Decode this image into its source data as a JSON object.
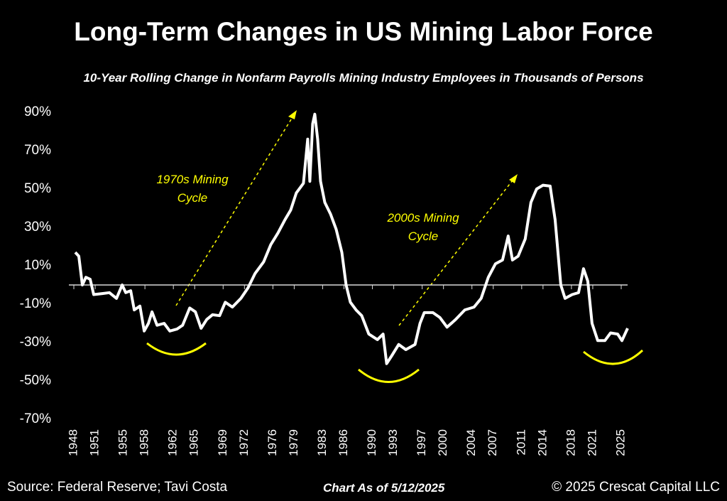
{
  "chart_data": {
    "type": "line",
    "title": "Long-Term Changes in US Mining Labor Force",
    "subtitle": "10-Year Rolling Change in Nonfarm Payrolls Mining Industry Employees in Thousands of Persons",
    "annotations": [
      "1970s Mining Cycle",
      "2000s Mining Cycle"
    ],
    "source": "Source: Federal Reserve; Tavi Costa",
    "date_note": "Chart As of 5/12/2025",
    "copyright": "© 2025 Crescat Capital LLC",
    "xlim": [
      1947.3,
      2025.9
    ],
    "xticks": [
      1948,
      1951,
      1955,
      1958,
      1962,
      1965,
      1969,
      1972,
      1976,
      1979,
      1983,
      1986,
      1990,
      1993,
      1997,
      2000,
      2004,
      2007,
      2011,
      2014,
      2018,
      2021,
      2025
    ],
    "ylim": [
      -70,
      90
    ],
    "yticks": [
      {
        "value": 90,
        "label": "90%"
      },
      {
        "value": 70,
        "label": "70%"
      },
      {
        "value": 50,
        "label": "50%"
      },
      {
        "value": 30,
        "label": "30%"
      },
      {
        "value": 10,
        "label": "10%"
      },
      {
        "value": -10,
        "label": "-10%"
      },
      {
        "value": -30,
        "label": "-30%"
      },
      {
        "value": -50,
        "label": "-50%"
      },
      {
        "value": -70,
        "label": "-70%"
      }
    ],
    "series": [
      {
        "color": "#ffffff",
        "x": [
          1948.2,
          1948.7,
          1949.2,
          1949.7,
          1950.3,
          1950.8,
          1952,
          1953,
          1954,
          1954.8,
          1955.3,
          1956,
          1956.5,
          1957.3,
          1957.9,
          1958.5,
          1959,
          1959.7,
          1960.7,
          1961.5,
          1962.5,
          1963.3,
          1964.3,
          1965.1,
          1965.9,
          1966.7,
          1967.5,
          1968.5,
          1969.3,
          1970.3,
          1971.5,
          1972.5,
          1973.5,
          1974.7,
          1975.7,
          1976.7,
          1977.7,
          1978.5,
          1979.3,
          1980.3,
          1980.9,
          1981.2,
          1981.6,
          1981.9,
          1982.3,
          1982.7,
          1983.3,
          1984.1,
          1984.9,
          1985.7,
          1986.3,
          1986.9,
          1987.7,
          1988.5,
          1989.5,
          1990.7,
          1991.5,
          1992,
          1992.7,
          1993.7,
          1994.7,
          1996,
          1996.7,
          1997.3,
          1998.5,
          1999.5,
          2000.5,
          2001.7,
          2003,
          2004.3,
          2005.3,
          2006.3,
          2007.3,
          2008.3,
          2009.1,
          2009.7,
          2010.5,
          2011.5,
          2012.3,
          2013.1,
          2014,
          2015,
          2015.7,
          2016.5,
          2017.1,
          2018.1,
          2019,
          2019.7,
          2020.3,
          2020.9,
          2021.7,
          2022.7,
          2023.5,
          2024.5,
          2025.1,
          2025.9
        ],
        "values": [
          17,
          15,
          0,
          4,
          3,
          -5,
          -4.5,
          -4,
          -7,
          0,
          -4,
          -3,
          -13,
          -11,
          -24,
          -20,
          -14,
          -21,
          -20,
          -24,
          -23,
          -21,
          -12,
          -14,
          -22.6,
          -18,
          -15.5,
          -16,
          -9,
          -11.5,
          -7,
          -1.5,
          6,
          12,
          21,
          27,
          34,
          39,
          48,
          53,
          76,
          54,
          84,
          89,
          76,
          54,
          43,
          37,
          29,
          17,
          0,
          -9,
          -13,
          -16,
          -25.6,
          -28.5,
          -25.6,
          -41,
          -37,
          -31,
          -33.7,
          -31,
          -20,
          -14.4,
          -14.4,
          -17,
          -22,
          -18,
          -13,
          -11.5,
          -7,
          4,
          11,
          13,
          25.5,
          13,
          15,
          24,
          43,
          50,
          52,
          51.5,
          34,
          0,
          -7,
          -5,
          -4,
          8.5,
          2,
          -20,
          -29,
          -29,
          -25,
          -25.6,
          -29,
          -22.6
        ]
      }
    ]
  }
}
